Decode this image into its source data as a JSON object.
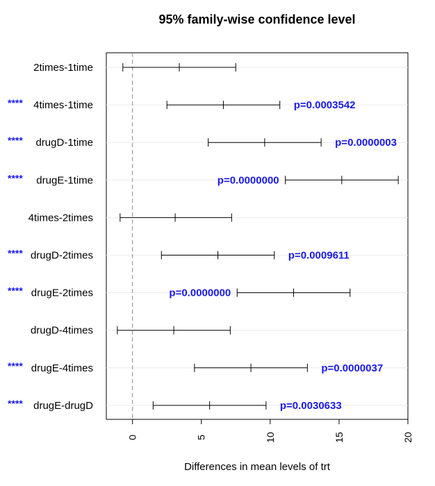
{
  "chart_data": {
    "type": "interval",
    "title": "95% family-wise confidence level",
    "xlabel": "Differences in mean levels of trt",
    "xlim": [
      -1.9,
      20.0
    ],
    "xticks": [
      0,
      5,
      10,
      15,
      20
    ],
    "reference_line": 0,
    "comparisons": [
      {
        "label": "2times-1time",
        "lwr": -0.7,
        "diff": 3.4,
        "upr": 7.5,
        "stars": "",
        "p_label": ""
      },
      {
        "label": "4times-1time",
        "lwr": 2.5,
        "diff": 6.6,
        "upr": 10.7,
        "stars": "****",
        "p_label": "p=0.0003542"
      },
      {
        "label": "drugD-1time",
        "lwr": 5.5,
        "diff": 9.6,
        "upr": 13.7,
        "stars": "****",
        "p_label": "p=0.0000003"
      },
      {
        "label": "drugE-1time",
        "lwr": 11.1,
        "diff": 15.2,
        "upr": 19.3,
        "stars": "****",
        "p_label": "p=0.0000000"
      },
      {
        "label": "4times-2times",
        "lwr": -0.9,
        "diff": 3.1,
        "upr": 7.2,
        "stars": "",
        "p_label": ""
      },
      {
        "label": "drugD-2times",
        "lwr": 2.1,
        "diff": 6.2,
        "upr": 10.3,
        "stars": "****",
        "p_label": "p=0.0009611"
      },
      {
        "label": "drugE-2times",
        "lwr": 7.6,
        "diff": 11.7,
        "upr": 15.8,
        "stars": "****",
        "p_label": "p=0.0000000"
      },
      {
        "label": "drugD-4times",
        "lwr": -1.1,
        "diff": 3.0,
        "upr": 7.1,
        "stars": "",
        "p_label": ""
      },
      {
        "label": "drugE-4times",
        "lwr": 4.5,
        "diff": 8.6,
        "upr": 12.7,
        "stars": "****",
        "p_label": "p=0.0000037"
      },
      {
        "label": "drugE-drugD",
        "lwr": 1.5,
        "diff": 5.6,
        "upr": 9.7,
        "stars": "****",
        "p_label": "p=0.0030633"
      }
    ]
  }
}
